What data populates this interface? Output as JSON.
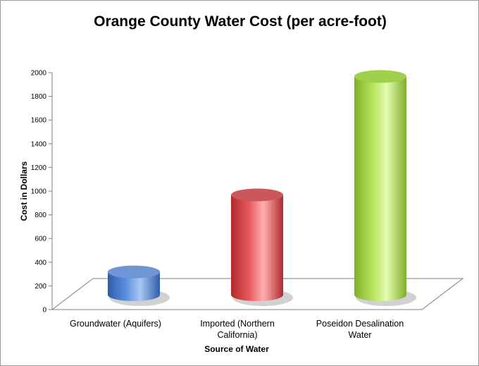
{
  "chart_data": {
    "type": "bar",
    "title": "Orange County Water Cost (per acre-foot)",
    "xlabel": "Source of Water",
    "ylabel": "Cost in Dollars",
    "categories": [
      [
        "Groundwater (Aquifers)"
      ],
      [
        "Imported (Northern",
        "California)"
      ],
      [
        "Poseidon Desalination",
        "Water"
      ]
    ],
    "values": [
      300,
      950,
      1950
    ],
    "ylim": [
      0,
      2000
    ],
    "yticks": [
      0,
      200,
      400,
      600,
      800,
      1000,
      1200,
      1400,
      1600,
      1800,
      2000
    ],
    "grid": false,
    "legend": "none",
    "colors": {
      "series": [
        {
          "light": "#a9c7f3",
          "mid": "#5b8fdc",
          "dark": "#2f5ea8",
          "top": "#6f95d4"
        },
        {
          "light": "#ffb0b0",
          "mid": "#e8595c",
          "dark": "#b02a2e",
          "top": "#c9585c"
        },
        {
          "light": "#e4fbb0",
          "mid": "#b5e35a",
          "dark": "#7fae2a",
          "top": "#9ed04c"
        }
      ],
      "floor": "#ffffff",
      "floor_edge": "#7f7f7f",
      "axis": "#7f7f7f"
    }
  }
}
